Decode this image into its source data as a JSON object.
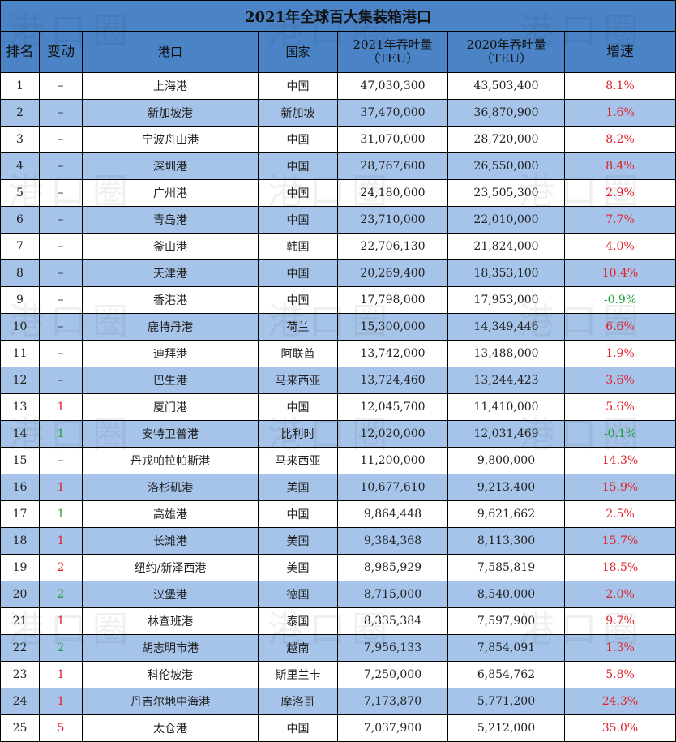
{
  "title": "2021年全球百大集装箱港口",
  "watermark": "港口圈",
  "headers": {
    "rank": "排名",
    "change": "变动",
    "port": "港口",
    "country": "国家",
    "t2021_line1": "2021年吞吐量",
    "t2021_line2": "（TEU）",
    "t2020_line1": "2020年吞吐量",
    "t2020_line2": "（TEU）",
    "growth": "增速"
  },
  "colors": {
    "header_bg": "#4a84c6",
    "stripe_bg": "#a6c4e9",
    "up": "#e0202a",
    "down": "#21a03a"
  },
  "rows": [
    {
      "rank": "1",
      "change": "–",
      "dir": "flat",
      "port": "上海港",
      "country": "中国",
      "t2021": "47,030,300",
      "t2020": "43,503,400",
      "growth": "8.1%",
      "gdir": "up"
    },
    {
      "rank": "2",
      "change": "–",
      "dir": "flat",
      "port": "新加坡港",
      "country": "新加坡",
      "t2021": "37,470,000",
      "t2020": "36,870,900",
      "growth": "1.6%",
      "gdir": "up"
    },
    {
      "rank": "3",
      "change": "–",
      "dir": "flat",
      "port": "宁波舟山港",
      "country": "中国",
      "t2021": "31,070,000",
      "t2020": "28,720,000",
      "growth": "8.2%",
      "gdir": "up"
    },
    {
      "rank": "4",
      "change": "–",
      "dir": "flat",
      "port": "深圳港",
      "country": "中国",
      "t2021": "28,767,600",
      "t2020": "26,550,000",
      "growth": "8.4%",
      "gdir": "up"
    },
    {
      "rank": "5",
      "change": "–",
      "dir": "flat",
      "port": "广州港",
      "country": "中国",
      "t2021": "24,180,000",
      "t2020": "23,505,300",
      "growth": "2.9%",
      "gdir": "up"
    },
    {
      "rank": "6",
      "change": "–",
      "dir": "flat",
      "port": "青岛港",
      "country": "中国",
      "t2021": "23,710,000",
      "t2020": "22,010,000",
      "growth": "7.7%",
      "gdir": "up"
    },
    {
      "rank": "7",
      "change": "–",
      "dir": "flat",
      "port": "釜山港",
      "country": "韩国",
      "t2021": "22,706,130",
      "t2020": "21,824,000",
      "growth": "4.0%",
      "gdir": "up"
    },
    {
      "rank": "8",
      "change": "–",
      "dir": "flat",
      "port": "天津港",
      "country": "中国",
      "t2021": "20,269,400",
      "t2020": "18,353,100",
      "growth": "10.4%",
      "gdir": "up"
    },
    {
      "rank": "9",
      "change": "–",
      "dir": "flat",
      "port": "香港港",
      "country": "中国",
      "t2021": "17,798,000",
      "t2020": "17,953,000",
      "growth": "-0.9%",
      "gdir": "down"
    },
    {
      "rank": "10",
      "change": "–",
      "dir": "flat",
      "port": "鹿特丹港",
      "country": "荷兰",
      "t2021": "15,300,000",
      "t2020": "14,349,446",
      "growth": "6.6%",
      "gdir": "up"
    },
    {
      "rank": "11",
      "change": "–",
      "dir": "flat",
      "port": "迪拜港",
      "country": "阿联酋",
      "t2021": "13,742,000",
      "t2020": "13,488,000",
      "growth": "1.9%",
      "gdir": "up"
    },
    {
      "rank": "12",
      "change": "–",
      "dir": "flat",
      "port": "巴生港",
      "country": "马来西亚",
      "t2021": "13,724,460",
      "t2020": "13,244,423",
      "growth": "3.6%",
      "gdir": "up"
    },
    {
      "rank": "13",
      "change": "1",
      "dir": "up",
      "port": "厦门港",
      "country": "中国",
      "t2021": "12,045,700",
      "t2020": "11,410,000",
      "growth": "5.6%",
      "gdir": "up"
    },
    {
      "rank": "14",
      "change": "1",
      "dir": "down",
      "port": "安特卫普港",
      "country": "比利时",
      "t2021": "12,020,000",
      "t2020": "12,031,469",
      "growth": "-0.1%",
      "gdir": "down"
    },
    {
      "rank": "15",
      "change": "–",
      "dir": "flat",
      "port": "丹戎帕拉帕斯港",
      "country": "马来西亚",
      "t2021": "11,200,000",
      "t2020": "9,800,000",
      "growth": "14.3%",
      "gdir": "up"
    },
    {
      "rank": "16",
      "change": "1",
      "dir": "up",
      "port": "洛杉矶港",
      "country": "美国",
      "t2021": "10,677,610",
      "t2020": "9,213,400",
      "growth": "15.9%",
      "gdir": "up"
    },
    {
      "rank": "17",
      "change": "1",
      "dir": "down",
      "port": "高雄港",
      "country": "中国",
      "t2021": "9,864,448",
      "t2020": "9,621,662",
      "growth": "2.5%",
      "gdir": "up"
    },
    {
      "rank": "18",
      "change": "1",
      "dir": "up",
      "port": "长滩港",
      "country": "美国",
      "t2021": "9,384,368",
      "t2020": "8,113,300",
      "growth": "15.7%",
      "gdir": "up"
    },
    {
      "rank": "19",
      "change": "2",
      "dir": "up",
      "port": "纽约/新泽西港",
      "country": "美国",
      "t2021": "8,985,929",
      "t2020": "7,585,819",
      "growth": "18.5%",
      "gdir": "up"
    },
    {
      "rank": "20",
      "change": "2",
      "dir": "down",
      "port": "汉堡港",
      "country": "德国",
      "t2021": "8,715,000",
      "t2020": "8,540,000",
      "growth": "2.0%",
      "gdir": "up"
    },
    {
      "rank": "21",
      "change": "1",
      "dir": "up",
      "port": "林查班港",
      "country": "泰国",
      "t2021": "8,335,384",
      "t2020": "7,597,900",
      "growth": "9.7%",
      "gdir": "up"
    },
    {
      "rank": "22",
      "change": "2",
      "dir": "down",
      "port": "胡志明市港",
      "country": "越南",
      "t2021": "7,956,133",
      "t2020": "7,854,091",
      "growth": "1.3%",
      "gdir": "up"
    },
    {
      "rank": "23",
      "change": "1",
      "dir": "up",
      "port": "科伦坡港",
      "country": "斯里兰卡",
      "t2021": "7,250,000",
      "t2020": "6,854,762",
      "growth": "5.8%",
      "gdir": "up"
    },
    {
      "rank": "24",
      "change": "1",
      "dir": "up",
      "port": "丹吉尔地中海港",
      "country": "摩洛哥",
      "t2021": "7,173,870",
      "t2020": "5,771,200",
      "growth": "24.3%",
      "gdir": "up"
    },
    {
      "rank": "25",
      "change": "5",
      "dir": "up",
      "port": "太仓港",
      "country": "中国",
      "t2021": "7,037,900",
      "t2020": "5,212,000",
      "growth": "35.0%",
      "gdir": "up"
    }
  ]
}
